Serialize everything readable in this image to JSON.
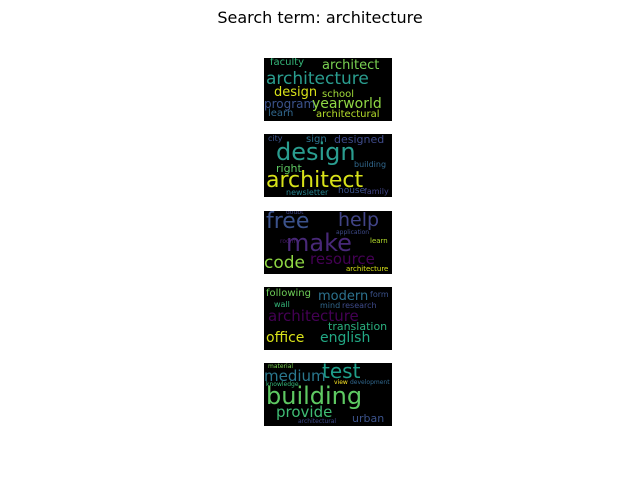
{
  "title": "Search term: architecture",
  "clouds": [
    {
      "words": [
        "faculty",
        "architect",
        "architecture",
        "design",
        "school",
        "program",
        "yearworld",
        "learn",
        "architectural"
      ],
      "colors": [
        "#35b779",
        "#7ad151",
        "#2a9d8f",
        "#d8e219",
        "#a0da39",
        "#3b528b",
        "#8fd744",
        "#31688e",
        "#b5de2b"
      ]
    },
    {
      "words": [
        "city",
        "sign",
        "designed",
        "design",
        "right",
        "building",
        "architect",
        "newsletter",
        "house",
        "family"
      ],
      "colors": [
        "#3b528b",
        "#2c728e",
        "#3e4a89",
        "#2a9d8f",
        "#5ec962",
        "#31688e",
        "#d8e219",
        "#26828e",
        "#3b528b",
        "#414487"
      ]
    },
    {
      "words": [
        "free",
        "help",
        "make",
        "doubt",
        "application",
        "room",
        "learn",
        "code",
        "resource",
        "architecture"
      ],
      "colors": [
        "#3b528b",
        "#414487",
        "#482878",
        "#404688",
        "#3e4a89",
        "#481b6d",
        "#b5de2b",
        "#8fd744",
        "#440154",
        "#d8e219"
      ]
    },
    {
      "words": [
        "following",
        "modern",
        "form",
        "wall",
        "mind",
        "research",
        "architecture",
        "translation",
        "office",
        "english"
      ],
      "colors": [
        "#6ece58",
        "#2c728e",
        "#3b528b",
        "#35b779",
        "#31688e",
        "#3e4a89",
        "#440154",
        "#2ab07f",
        "#d8e219",
        "#22a884"
      ]
    },
    {
      "words": [
        "material",
        "test",
        "medium",
        "knowledge",
        "view",
        "development",
        "building",
        "provide",
        "architectural",
        "urban"
      ],
      "colors": [
        "#7ad151",
        "#1f9e89",
        "#2a788e",
        "#35b779",
        "#fde725",
        "#31688e",
        "#5ec962",
        "#3fbc73",
        "#3e4a89",
        "#3b528b"
      ]
    }
  ]
}
